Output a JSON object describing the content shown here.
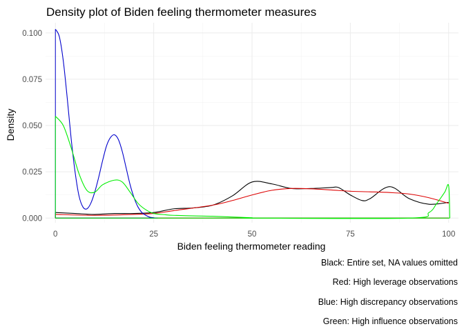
{
  "chart_data": {
    "type": "line",
    "title": "Density plot of Biden feeling thermometer measures",
    "xlabel": "Biden feeling thermometer reading",
    "ylabel": "Density",
    "xlim": [
      -2.5,
      102.5
    ],
    "ylim": [
      -0.0025,
      0.1055
    ],
    "x_ticks": [
      0,
      25,
      50,
      75,
      100
    ],
    "x_tick_labels": [
      "0",
      "25",
      "50",
      "75",
      "100"
    ],
    "y_ticks": [
      0,
      0.025,
      0.05,
      0.075,
      0.1
    ],
    "y_tick_labels": [
      "0.000",
      "0.025",
      "0.050",
      "0.075",
      "0.100"
    ],
    "grid": true,
    "legend": "none",
    "captions": [
      "Black: Entire set, NA values omitted",
      "Red: High leverage observations",
      "Blue: High discrepancy observations",
      "Green: High influence observations"
    ],
    "series": [
      {
        "color": "#000000",
        "x": [
          0,
          5,
          10,
          15,
          20,
          25,
          30,
          35,
          40,
          45,
          50,
          55,
          60,
          65,
          70,
          72,
          75,
          78,
          80,
          85,
          90,
          95,
          100
        ],
        "y": [
          0.003,
          0.0025,
          0.002,
          0.0025,
          0.0025,
          0.003,
          0.005,
          0.0055,
          0.007,
          0.012,
          0.0195,
          0.0185,
          0.016,
          0.016,
          0.0165,
          0.0165,
          0.0125,
          0.0095,
          0.0105,
          0.017,
          0.0105,
          0.0075,
          0.0085
        ]
      },
      {
        "color": "#dd0000",
        "x": [
          0,
          10,
          20,
          25,
          30,
          40,
          45,
          50,
          55,
          60,
          65,
          70,
          75,
          80,
          85,
          90,
          95,
          100
        ],
        "y": [
          0.002,
          0.0015,
          0.002,
          0.0025,
          0.004,
          0.007,
          0.0095,
          0.0125,
          0.015,
          0.016,
          0.0158,
          0.0152,
          0.0145,
          0.0142,
          0.0138,
          0.013,
          0.011,
          0.008
        ]
      },
      {
        "color": "#0000cc",
        "x": [
          0,
          1,
          2,
          3,
          4,
          5,
          6,
          7,
          8,
          9,
          10,
          11,
          12,
          13,
          14,
          15,
          16,
          17,
          18,
          19,
          20,
          21,
          22,
          23,
          24,
          25,
          26
        ],
        "y": [
          0.102,
          0.098,
          0.085,
          0.065,
          0.043,
          0.025,
          0.012,
          0.006,
          0.005,
          0.008,
          0.014,
          0.022,
          0.031,
          0.039,
          0.0435,
          0.045,
          0.0425,
          0.036,
          0.027,
          0.018,
          0.011,
          0.006,
          0.003,
          0.0015,
          0.0005,
          0.0002,
          0
        ]
      },
      {
        "color": "#00ee00",
        "x": [
          0,
          2,
          4,
          6,
          8,
          10,
          12,
          15,
          17,
          19,
          21,
          23,
          25,
          28,
          30,
          35,
          40,
          45,
          50,
          50.5,
          90,
          95,
          97,
          99,
          100,
          100.3
        ],
        "y": [
          0.055,
          0.05,
          0.038,
          0.024,
          0.015,
          0.014,
          0.018,
          0.0205,
          0.0195,
          0.014,
          0.008,
          0.0045,
          0.0025,
          0.0018,
          0.0015,
          0.0012,
          0.001,
          0.0006,
          0.0002,
          0,
          0,
          0.003,
          0.008,
          0.014,
          0.0175,
          0
        ]
      }
    ]
  }
}
